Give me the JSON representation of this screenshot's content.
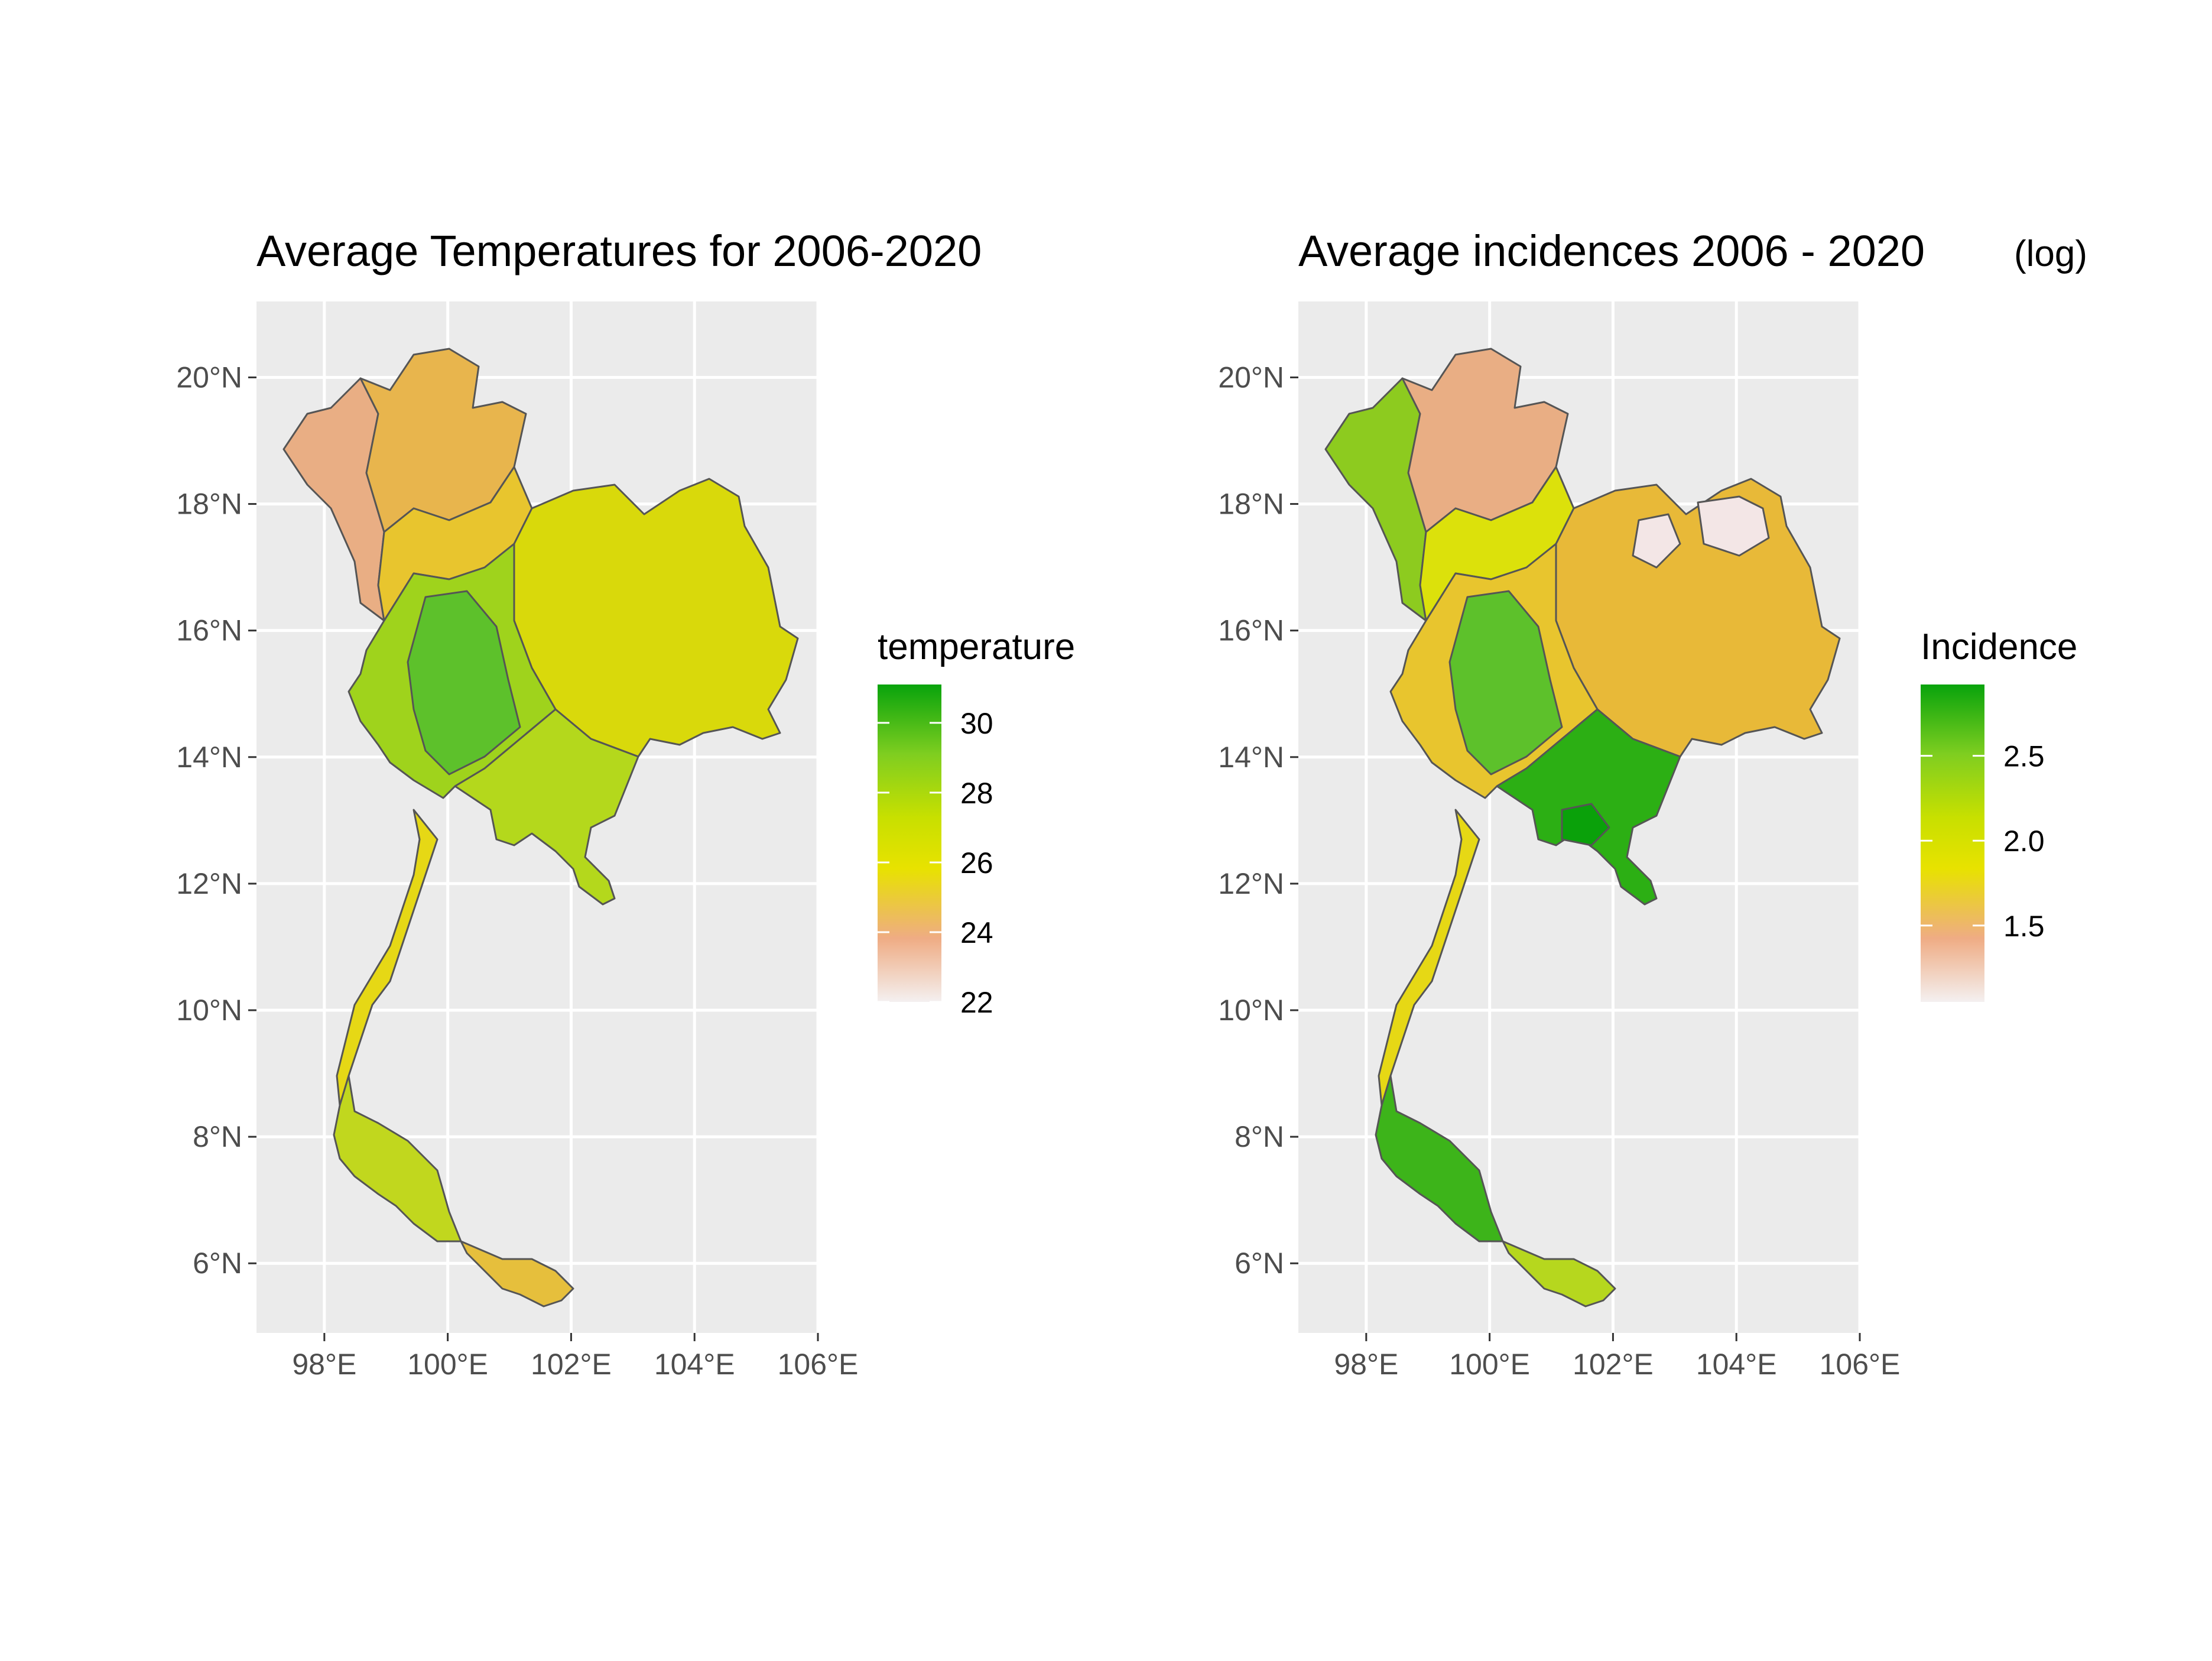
{
  "chart_data": [
    {
      "type": "choropleth",
      "title": "Average Temperatures for 2006-2020",
      "title_suffix": "",
      "xlabel": "",
      "ylabel": "",
      "x_ticks": [
        "98°E",
        "100°E",
        "102°E",
        "104°E",
        "106°E"
      ],
      "y_ticks": [
        "6°N",
        "8°N",
        "10°N",
        "12°N",
        "14°N",
        "16°N",
        "18°N",
        "20°N"
      ],
      "xlim": [
        96.9,
        106.0
      ],
      "ylim": [
        4.9,
        21.2
      ],
      "grid": true,
      "legend": {
        "title": "temperature",
        "placement": "right",
        "range": [
          22,
          31.1
        ],
        "ticks": [
          "30",
          "28",
          "26",
          "24",
          "22"
        ],
        "colors": [
          "#f4f0f0",
          "#efac84",
          "#e8e200",
          "#c8e000",
          "#7fce20",
          "#08a30c"
        ]
      },
      "fill_colors": {
        "north_west": "#e9ae84",
        "north": "#e8b54d",
        "upper_north": "#e8c52e",
        "north_east": "#d9d90b",
        "central": "#5dc12b",
        "central_ring": "#9fd31c",
        "east": "#b4d81c",
        "south_upper": "#e6d815",
        "south": "#c1d71e",
        "south_tip": "#e6bf3c"
      }
    },
    {
      "type": "choropleth",
      "title": "Average incidences 2006 - 2020",
      "title_suffix": "(log)",
      "xlabel": "",
      "ylabel": "",
      "x_ticks": [
        "98°E",
        "100°E",
        "102°E",
        "104°E",
        "106°E"
      ],
      "y_ticks": [
        "6°N",
        "8°N",
        "10°N",
        "12°N",
        "14°N",
        "16°N",
        "18°N",
        "20°N"
      ],
      "xlim": [
        96.9,
        106.0
      ],
      "ylim": [
        4.9,
        21.2
      ],
      "grid": true,
      "legend": {
        "title": "Incidence",
        "placement": "right",
        "range": [
          1.05,
          2.92
        ],
        "ticks": [
          "2.5",
          "2.0",
          "1.5"
        ],
        "colors": [
          "#f4f0f0",
          "#efac84",
          "#e8e200",
          "#c8e000",
          "#7fce20",
          "#08a30c"
        ]
      },
      "fill_colors": {
        "north_west": "#8dcb1f",
        "north": "#e9ae84",
        "upper_north": "#dce10b",
        "north_east": "#e8b938",
        "north_east_pale": "#f3e6e6",
        "central": "#5dc12b",
        "central_ring": "#e8c52e",
        "east": "#2caf14",
        "east_dark": "#0aa10a",
        "south_upper": "#e6d815",
        "south": "#3db41a",
        "south_tip": "#b6d71e"
      }
    }
  ]
}
